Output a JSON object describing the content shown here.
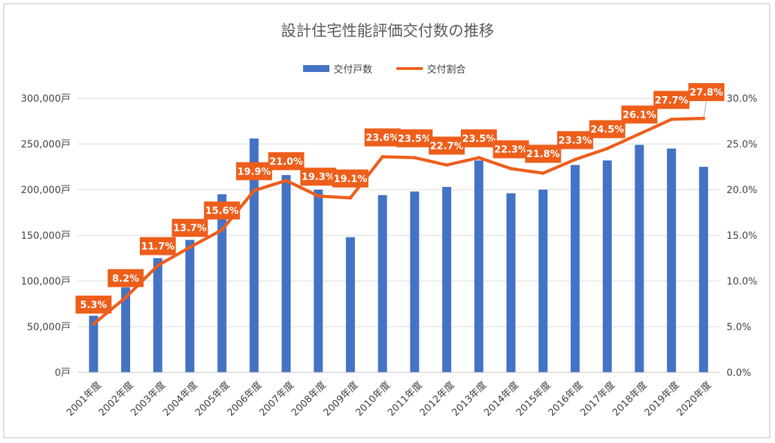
{
  "chart_data": {
    "type": "bar",
    "title": "設計住宅性能評価交付数の推移",
    "categories": [
      "2001年度",
      "2002年度",
      "2003年度",
      "2004年度",
      "2005年度",
      "2006年度",
      "2007年度",
      "2008年度",
      "2009年度",
      "2010年度",
      "2011年度",
      "2012年度",
      "2013年度",
      "2014年度",
      "2015年度",
      "2016年度",
      "2017年度",
      "2018年度",
      "2019年度",
      "2020年度"
    ],
    "series": [
      {
        "name": "交付戸数",
        "type": "bar",
        "axis": "left",
        "color": "#4472c4",
        "values": [
          62000,
          93000,
          125000,
          145000,
          195000,
          256000,
          216000,
          200000,
          148000,
          194000,
          198000,
          203000,
          232000,
          196000,
          200000,
          227000,
          232000,
          249000,
          245000,
          225000
        ]
      },
      {
        "name": "交付割合",
        "type": "line",
        "axis": "right",
        "color": "#ed5e1b",
        "values": [
          5.3,
          8.2,
          11.7,
          13.7,
          15.6,
          19.9,
          21.0,
          19.3,
          19.1,
          23.6,
          23.5,
          22.7,
          23.5,
          22.3,
          21.8,
          23.3,
          24.5,
          26.1,
          27.7,
          27.8
        ],
        "labels": [
          "5.3%",
          "8.2%",
          "11.7%",
          "13.7%",
          "15.6%",
          "19.9%",
          "21.0%",
          "19.3%",
          "19.1%",
          "23.6%",
          "23.5%",
          "22.7%",
          "23.5%",
          "22.3%",
          "21.8%",
          "23.3%",
          "24.5%",
          "26.1%",
          "27.7%",
          "27.8%"
        ]
      }
    ],
    "y_left": {
      "ylim": [
        0,
        300000
      ],
      "ticks": [
        0,
        50000,
        100000,
        150000,
        200000,
        250000,
        300000
      ],
      "tick_labels": [
        "0戸",
        "50,000戸",
        "100,000戸",
        "150,000戸",
        "200,000戸",
        "250,000戸",
        "300,000戸"
      ]
    },
    "y_right": {
      "ylim": [
        0,
        30
      ],
      "ticks": [
        0,
        5,
        10,
        15,
        20,
        25,
        30
      ],
      "tick_labels": [
        "0.0%",
        "5.0%",
        "10.0%",
        "15.0%",
        "20.0%",
        "25.0%",
        "30.0%"
      ]
    },
    "legend_position": "top",
    "grid": true,
    "label_box_color": "#ed5e1b",
    "gridline_color": "#d9d9d9"
  }
}
